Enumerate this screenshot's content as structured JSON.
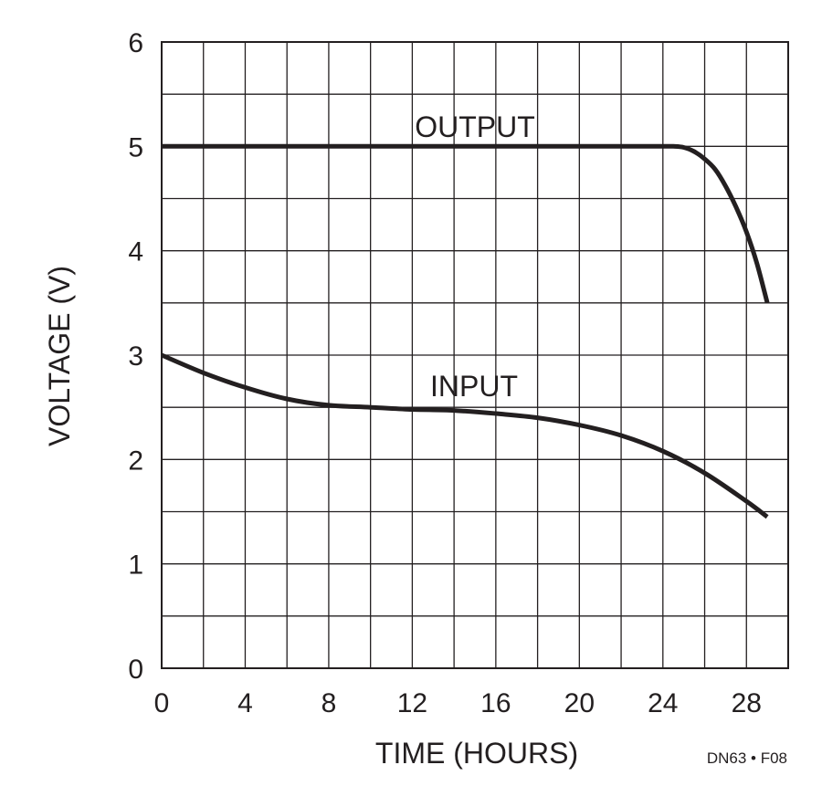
{
  "chart_data": {
    "type": "line",
    "xlabel": "TIME (HOURS)",
    "ylabel": "VOLTAGE (V)",
    "xlim": [
      0,
      30
    ],
    "ylim": [
      0,
      6
    ],
    "x_ticks": [
      0,
      4,
      8,
      12,
      16,
      20,
      24,
      28
    ],
    "y_ticks": [
      0,
      1,
      2,
      3,
      4,
      5,
      6
    ],
    "grid": true,
    "figure_id": "DN63 • F08",
    "colors": {
      "line": "#231f20",
      "grid": "#231f20",
      "background": "#ffffff"
    },
    "series": [
      {
        "name": "OUTPUT",
        "x": [
          0,
          4,
          8,
          12,
          16,
          20,
          24,
          24.5,
          25,
          25.5,
          26,
          26.5,
          27,
          27.5,
          28,
          28.5,
          29
        ],
        "y": [
          5,
          5,
          5,
          5,
          5,
          5,
          5,
          5,
          4.99,
          4.95,
          4.88,
          4.78,
          4.62,
          4.42,
          4.18,
          3.88,
          3.5
        ]
      },
      {
        "name": "INPUT",
        "x": [
          0,
          2,
          4,
          6,
          8,
          10,
          12,
          14,
          16,
          18,
          20,
          22,
          24,
          26,
          28,
          29
        ],
        "y": [
          3.0,
          2.83,
          2.69,
          2.58,
          2.52,
          2.5,
          2.48,
          2.47,
          2.44,
          2.4,
          2.33,
          2.23,
          2.08,
          1.87,
          1.6,
          1.45
        ]
      }
    ]
  }
}
